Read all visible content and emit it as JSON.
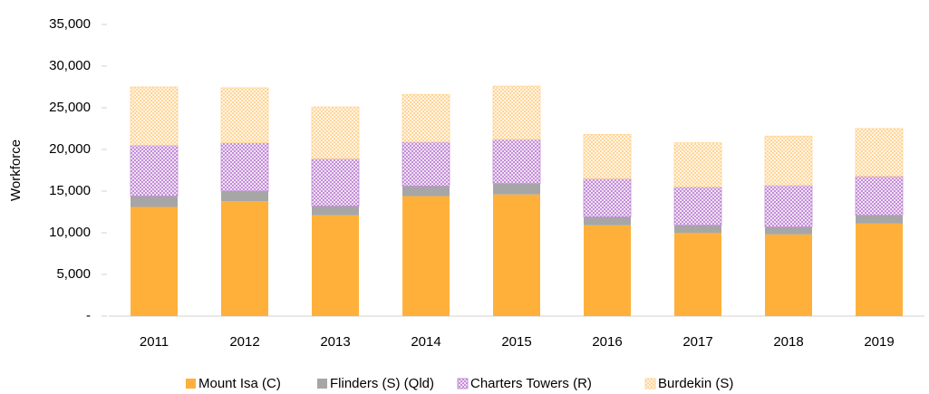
{
  "chart_data": {
    "type": "stacked_bar",
    "y_label": "Workforce",
    "categories": [
      "2011",
      "2012",
      "2013",
      "2014",
      "2015",
      "2016",
      "2017",
      "2018",
      "2019"
    ],
    "series": [
      {
        "name": "Mount Isa (C)",
        "color": "#ffb03b",
        "values": [
          13100,
          13800,
          12100,
          14400,
          14600,
          10900,
          10000,
          9800,
          11100
        ]
      },
      {
        "name": "Flinders (S) (Qld)",
        "color": "#a6a6a6",
        "values": [
          1300,
          1200,
          1100,
          1200,
          1300,
          1000,
          900,
          900,
          1000
        ]
      },
      {
        "name": "Charters Towers (R)",
        "color": "#c38fd6",
        "values": [
          6100,
          5800,
          5700,
          5300,
          5300,
          4600,
          4600,
          5000,
          4700
        ]
      },
      {
        "name": "Burdekin (S)",
        "color": "#ffd699",
        "values": [
          7000,
          6600,
          6200,
          5700,
          6400,
          5300,
          5300,
          5900,
          5700
        ]
      }
    ],
    "ylim": [
      0,
      35000
    ],
    "yticks": [
      {
        "value": 0,
        "label": "-"
      },
      {
        "value": 5000,
        "label": "5,000"
      },
      {
        "value": 10000,
        "label": "10,000"
      },
      {
        "value": 15000,
        "label": "15,000"
      },
      {
        "value": 20000,
        "label": "20,000"
      },
      {
        "value": 25000,
        "label": "25,000"
      },
      {
        "value": 30000,
        "label": "30,000"
      },
      {
        "value": 35000,
        "label": "35,000"
      }
    ],
    "legend": "bottom"
  }
}
